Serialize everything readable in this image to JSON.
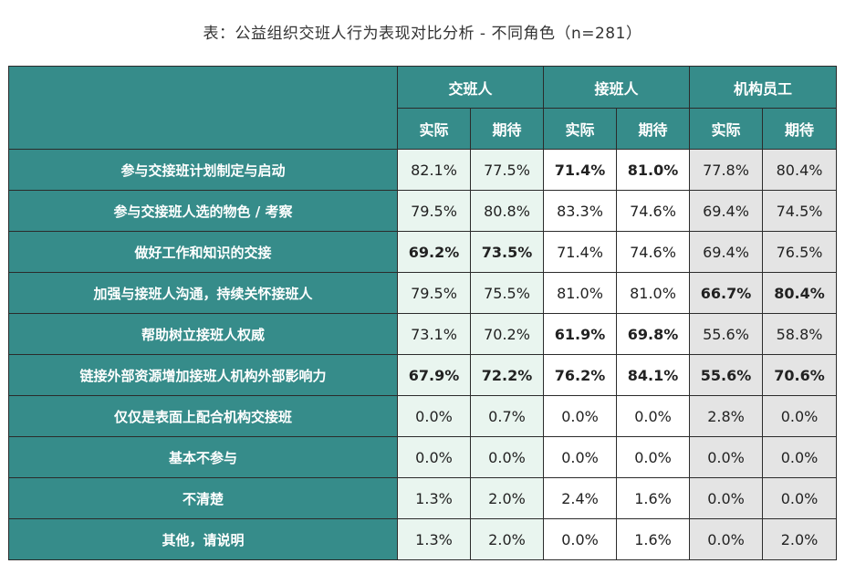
{
  "title": "表：公益组织交班人行为表现对比分析 - 不同角色（n=281）",
  "colors": {
    "header_bg": "#368c8a",
    "group1_bg": "#e9f5ef",
    "group2_bg": "#ffffff",
    "group3_bg": "#e4e4e4"
  },
  "groups": [
    "交班人",
    "接班人",
    "机构员工"
  ],
  "subheaders": [
    "实际",
    "期待",
    "实际",
    "期待",
    "实际",
    "期待"
  ],
  "rows": [
    {
      "label": "参与交接班计划制定与启动",
      "values": [
        "82.1%",
        "77.5%",
        "71.4%",
        "81.0%",
        "77.8%",
        "80.4%"
      ],
      "bold": [
        false,
        false,
        true,
        true,
        false,
        false
      ]
    },
    {
      "label": "参与交接班人选的物色 / 考察",
      "values": [
        "79.5%",
        "80.8%",
        "83.3%",
        "74.6%",
        "69.4%",
        "74.5%"
      ],
      "bold": [
        false,
        false,
        false,
        false,
        false,
        false
      ]
    },
    {
      "label": "做好工作和知识的交接",
      "values": [
        "69.2%",
        "73.5%",
        "71.4%",
        "74.6%",
        "69.4%",
        "76.5%"
      ],
      "bold": [
        true,
        true,
        false,
        false,
        false,
        false
      ]
    },
    {
      "label": "加强与接班人沟通，持续关怀接班人",
      "values": [
        "79.5%",
        "75.5%",
        "81.0%",
        "81.0%",
        "66.7%",
        "80.4%"
      ],
      "bold": [
        false,
        false,
        false,
        false,
        true,
        true
      ]
    },
    {
      "label": "帮助树立接班人权威",
      "values": [
        "73.1%",
        "70.2%",
        "61.9%",
        "69.8%",
        "55.6%",
        "58.8%"
      ],
      "bold": [
        false,
        false,
        true,
        true,
        false,
        false
      ]
    },
    {
      "label": "链接外部资源增加接班人机构外部影响力",
      "values": [
        "67.9%",
        "72.2%",
        "76.2%",
        "84.1%",
        "55.6%",
        "70.6%"
      ],
      "bold": [
        true,
        true,
        true,
        true,
        true,
        true
      ]
    },
    {
      "label": "仅仅是表面上配合机构交接班",
      "values": [
        "0.0%",
        "0.7%",
        "0.0%",
        "0.0%",
        "2.8%",
        "0.0%"
      ],
      "bold": [
        false,
        false,
        false,
        false,
        false,
        false
      ]
    },
    {
      "label": "基本不参与",
      "values": [
        "0.0%",
        "0.0%",
        "0.0%",
        "0.0%",
        "0.0%",
        "0.0%"
      ],
      "bold": [
        false,
        false,
        false,
        false,
        false,
        false
      ]
    },
    {
      "label": "不清楚",
      "values": [
        "1.3%",
        "2.0%",
        "2.4%",
        "1.6%",
        "0.0%",
        "0.0%"
      ],
      "bold": [
        false,
        false,
        false,
        false,
        false,
        false
      ]
    },
    {
      "label": "其他，请说明",
      "values": [
        "1.3%",
        "2.0%",
        "0.0%",
        "1.6%",
        "0.0%",
        "2.0%"
      ],
      "bold": [
        false,
        false,
        false,
        false,
        false,
        false
      ]
    }
  ]
}
